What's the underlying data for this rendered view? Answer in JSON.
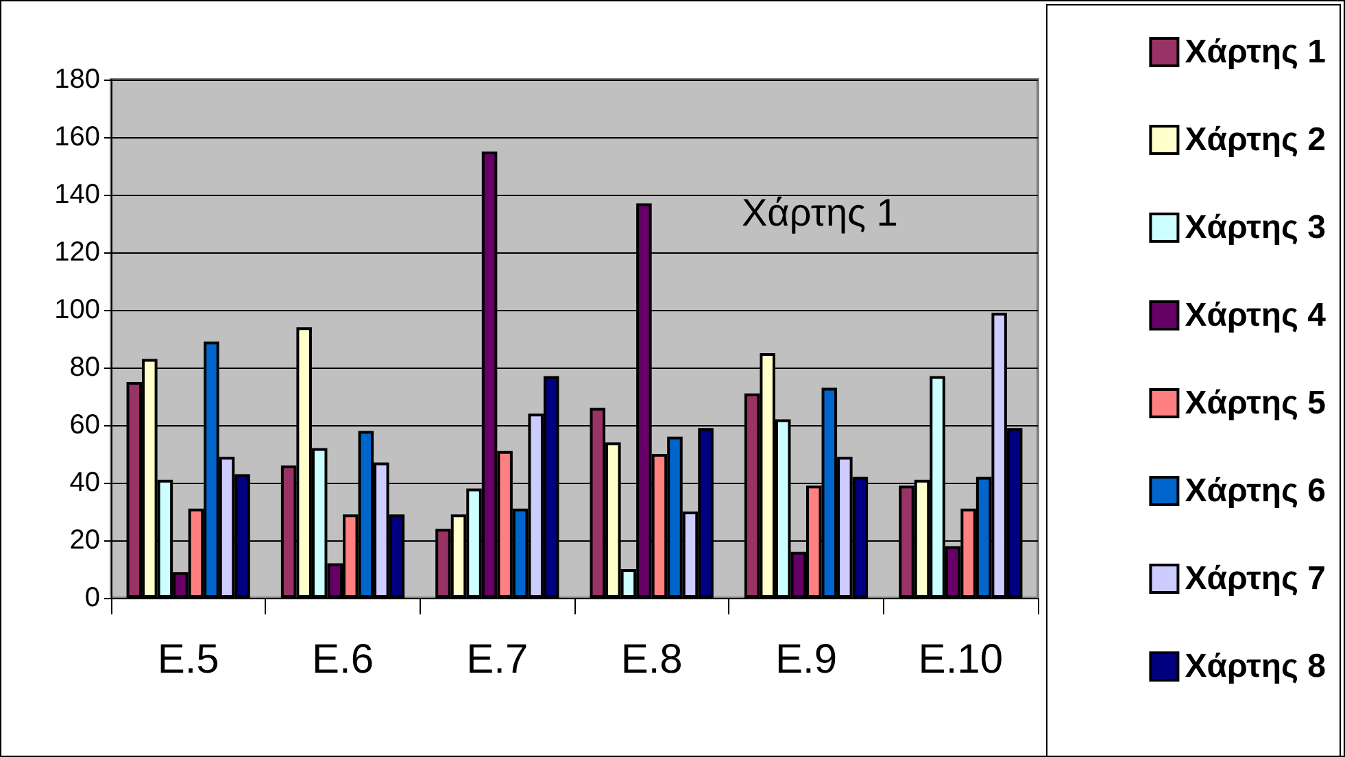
{
  "chart_data": {
    "type": "bar",
    "categories": [
      "Ε.5",
      "Ε.6",
      "Ε.7",
      "Ε.8",
      "Ε.9",
      "Ε.10"
    ],
    "series": [
      {
        "name": "Χάρτης 1",
        "color": "#993366",
        "values": [
          75,
          46,
          24,
          66,
          71,
          39
        ]
      },
      {
        "name": "Χάρτης 2",
        "color": "#ffffcc",
        "values": [
          83,
          94,
          29,
          54,
          85,
          41
        ]
      },
      {
        "name": "Χάρτης 3",
        "color": "#ccffff",
        "values": [
          41,
          52,
          38,
          10,
          62,
          77
        ]
      },
      {
        "name": "Χάρτης 4",
        "color": "#660066",
        "values": [
          9,
          12,
          155,
          137,
          16,
          18
        ]
      },
      {
        "name": "Χάρτης 5",
        "color": "#ff8080",
        "values": [
          31,
          29,
          51,
          50,
          39,
          31
        ]
      },
      {
        "name": "Χάρτης 6",
        "color": "#0066cc",
        "values": [
          89,
          58,
          31,
          56,
          73,
          42
        ]
      },
      {
        "name": "Χάρτης 7",
        "color": "#ccccff",
        "values": [
          49,
          47,
          64,
          30,
          49,
          99
        ]
      },
      {
        "name": "Χάρτης 8",
        "color": "#000080",
        "values": [
          43,
          29,
          77,
          59,
          42,
          59
        ]
      }
    ],
    "annotations": [
      "Χάρτης 1"
    ],
    "ylim": [
      0,
      180
    ],
    "yticks": [
      0,
      20,
      40,
      60,
      80,
      100,
      120,
      140,
      160,
      180
    ],
    "grid": "y",
    "legend": "right"
  }
}
